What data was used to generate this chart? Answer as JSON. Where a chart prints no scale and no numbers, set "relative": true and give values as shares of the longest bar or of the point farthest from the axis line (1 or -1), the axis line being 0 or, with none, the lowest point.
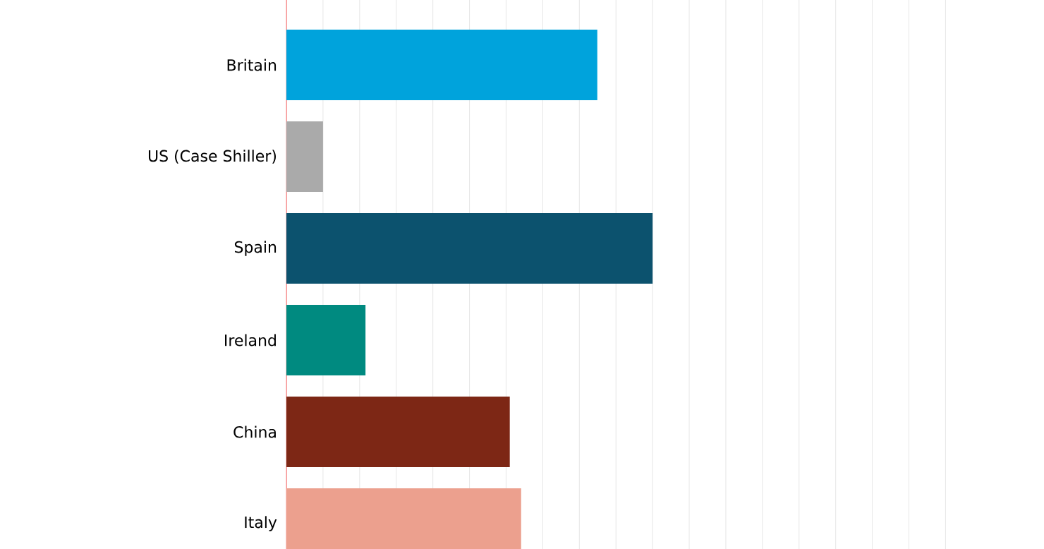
{
  "chart_data": {
    "type": "bar",
    "orientation": "horizontal",
    "relative": true,
    "grid": "x",
    "categories": [
      "Britain",
      "US (Case Shiller)",
      "Spain",
      "Ireland",
      "China",
      "Italy"
    ],
    "values": [
      0.849,
      0.1,
      1,
      0.216,
      0.61,
      0.641
    ],
    "colors": [
      "#00a3dc",
      "#aaaaaa",
      "#0c526e",
      "#008a80",
      "#7d2715",
      "#eca08e"
    ]
  }
}
